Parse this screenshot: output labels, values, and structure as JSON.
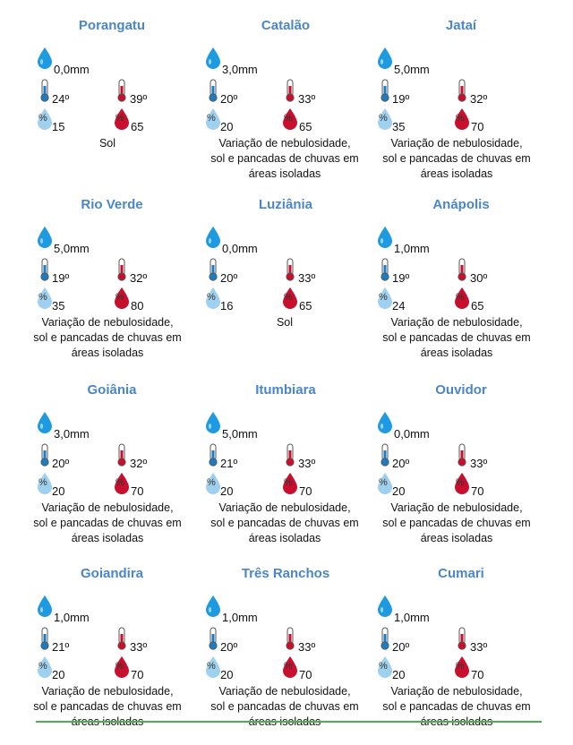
{
  "labels": {
    "tmin_mark": "t'",
    "tmax_mark": "t'",
    "pct": "%"
  },
  "colors": {
    "city": "#4a86c8",
    "drop": "#1e9be0",
    "cold": "#1a7cc4",
    "hot": "#c8102e",
    "humid_light": "#9fd0ee",
    "humid_dark": "#c8102e",
    "line": "#4caf50"
  },
  "forecasts": [
    {
      "city": "Porangatu",
      "rain": "0,0mm",
      "tmin": "24º",
      "tmax": "39º",
      "hmin": "15",
      "hmax": "65",
      "desc": "Sol"
    },
    {
      "city": "Catalão",
      "rain": "3,0mm",
      "tmin": "20º",
      "tmax": "33º",
      "hmin": "20",
      "hmax": "65",
      "desc": "Variação de nebulosidade,\nsol e pancadas de chuvas em\náreas isoladas"
    },
    {
      "city": "Jataí",
      "rain": "5,0mm",
      "tmin": "19º",
      "tmax": "32º",
      "hmin": "35",
      "hmax": "70",
      "desc": "Variação de nebulosidade,\nsol e pancadas de chuvas em\náreas isoladas"
    },
    {
      "city": "Rio Verde",
      "rain": "5,0mm",
      "tmin": "19º",
      "tmax": "32º",
      "hmin": "35",
      "hmax": "80",
      "desc": "Variação de nebulosidade,\nsol e pancadas de chuvas em\náreas isoladas"
    },
    {
      "city": "Luziânia",
      "rain": "0,0mm",
      "tmin": "20º",
      "tmax": "33º",
      "hmin": "16",
      "hmax": "65",
      "desc": "Sol"
    },
    {
      "city": "Anápolis",
      "rain": "1,0mm",
      "tmin": "19º",
      "tmax": "30º",
      "hmin": "24",
      "hmax": "65",
      "desc": "Variação de nebulosidade,\nsol e pancadas de chuvas em\náreas isoladas"
    },
    {
      "city": "Goiânia",
      "rain": "3,0mm",
      "tmin": "20º",
      "tmax": "32º",
      "hmin": "20",
      "hmax": "70",
      "desc": "Variação de nebulosidade,\nsol e pancadas de chuvas em\náreas isoladas"
    },
    {
      "city": "Itumbiara",
      "rain": "5,0mm",
      "tmin": "21º",
      "tmax": "33º",
      "hmin": "20",
      "hmax": "70",
      "desc": "Variação de nebulosidade,\nsol e pancadas de chuvas em\náreas isoladas"
    },
    {
      "city": "Ouvidor",
      "rain": "0,0mm",
      "tmin": "20º",
      "tmax": "33º",
      "hmin": "20",
      "hmax": "70",
      "desc": "Variação de nebulosidade,\nsol e pancadas de chuvas em\náreas isoladas"
    },
    {
      "city": "Goiandira",
      "rain": "1,0mm",
      "tmin": "21º",
      "tmax": "33º",
      "hmin": "20",
      "hmax": "70",
      "desc": "Variação de nebulosidade,\nsol e pancadas de chuvas em\náreas isoladas"
    },
    {
      "city": "Três Ranchos",
      "rain": "1,0mm",
      "tmin": "20º",
      "tmax": "33º",
      "hmin": "20",
      "hmax": "70",
      "desc": "Variação de nebulosidade,\nsol e pancadas de chuvas em\náreas isoladas"
    },
    {
      "city": "Cumari",
      "rain": "1,0mm",
      "tmin": "20º",
      "tmax": "33º",
      "hmin": "20",
      "hmax": "70",
      "desc": "Variação de nebulosidade,\nsol e pancadas de chuvas em\náreas isoladas"
    }
  ]
}
